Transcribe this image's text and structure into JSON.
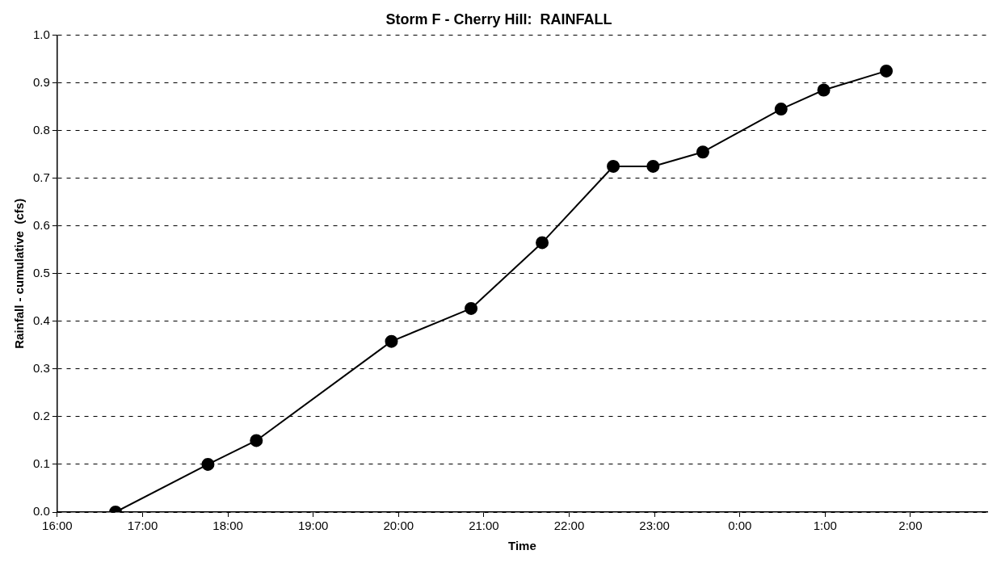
{
  "chart_data": {
    "type": "line",
    "title": "Storm F - Cherry Hill:  RAINFALL",
    "xlabel": "Time",
    "ylabel": "Rainfall - cumulative  (cfs)",
    "x": [
      "2000-01-01T16:41",
      "2000-01-01T17:46",
      "2000-01-01T18:20",
      "2000-01-01T19:55",
      "2000-01-01T20:51",
      "2000-01-01T21:41",
      "2000-01-01T22:31",
      "2000-01-01T22:59",
      "2000-01-01T23:34",
      "2000-01-02T00:29",
      "2000-01-02T00:59",
      "2000-01-02T01:43"
    ],
    "series": [
      {
        "color": "#000000",
        "values": [
          0,
          0.1,
          0.15,
          0.358,
          0.427,
          0.565,
          0.725,
          0.725,
          0.755,
          0.845,
          0.885,
          0.925
        ]
      }
    ],
    "xlim": [
      "2000-01-01T16:00",
      "2000-01-02T02:54"
    ],
    "xticks": [
      {
        "value": "2000-01-01T16:00",
        "label": "16:00"
      },
      {
        "value": "2000-01-01T17:00",
        "label": "17:00"
      },
      {
        "value": "2000-01-01T18:00",
        "label": "18:00"
      },
      {
        "value": "2000-01-01T19:00",
        "label": "19:00"
      },
      {
        "value": "2000-01-01T20:00",
        "label": "20:00"
      },
      {
        "value": "2000-01-01T21:00",
        "label": "21:00"
      },
      {
        "value": "2000-01-01T22:00",
        "label": "22:00"
      },
      {
        "value": "2000-01-01T23:00",
        "label": "23:00"
      },
      {
        "value": "2000-01-02T00:00",
        "label": "0:00"
      },
      {
        "value": "2000-01-02T01:00",
        "label": "1:00"
      },
      {
        "value": "2000-01-02T02:00",
        "label": "2:00"
      }
    ],
    "ylim": [
      0,
      1
    ],
    "yticks": [
      {
        "value": 0,
        "label": "0.0"
      },
      {
        "value": 0.1,
        "label": "0.1"
      },
      {
        "value": 0.2,
        "label": "0.2"
      },
      {
        "value": 0.3,
        "label": "0.3"
      },
      {
        "value": 0.4,
        "label": "0.4"
      },
      {
        "value": 0.5,
        "label": "0.5"
      },
      {
        "value": 0.6,
        "label": "0.6"
      },
      {
        "value": 0.7,
        "label": "0.7"
      },
      {
        "value": 0.8,
        "label": "0.8"
      },
      {
        "value": 0.9,
        "label": "0.9"
      },
      {
        "value": 1,
        "label": "1.0"
      }
    ],
    "grid": "y",
    "legend": false,
    "marker": "circle",
    "line_style": "solid"
  }
}
